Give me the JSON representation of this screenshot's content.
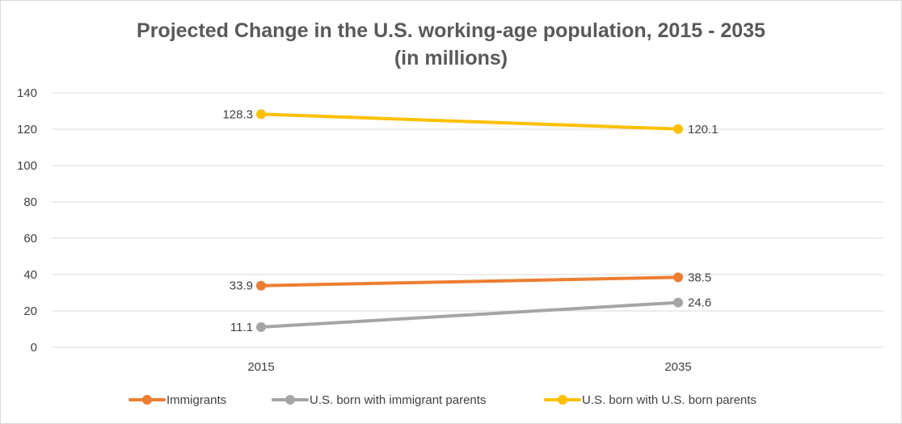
{
  "chart_data": {
    "type": "line",
    "title": "Projected Change in the U.S. working-age population, 2015 - 2035",
    "subtitle": "(in millions)",
    "categories": [
      "2015",
      "2035"
    ],
    "ylim": [
      0,
      140
    ],
    "yticks": [
      0,
      20,
      40,
      60,
      80,
      100,
      120,
      140
    ],
    "grid": true,
    "legend_position": "bottom",
    "series": [
      {
        "name": "Immigrants",
        "values": [
          33.9,
          38.5
        ],
        "labels": [
          "33.9",
          "38.5"
        ],
        "color": "#ED7D31"
      },
      {
        "name": "U.S. born with immigrant parents",
        "values": [
          11.1,
          24.6
        ],
        "labels": [
          "11.1",
          "24.6"
        ],
        "color": "#A5A5A5"
      },
      {
        "name": "U.S. born with U.S. born parents",
        "values": [
          128.3,
          120.1
        ],
        "labels": [
          "128.3",
          "120.1"
        ],
        "color": "#FFC000"
      }
    ]
  }
}
